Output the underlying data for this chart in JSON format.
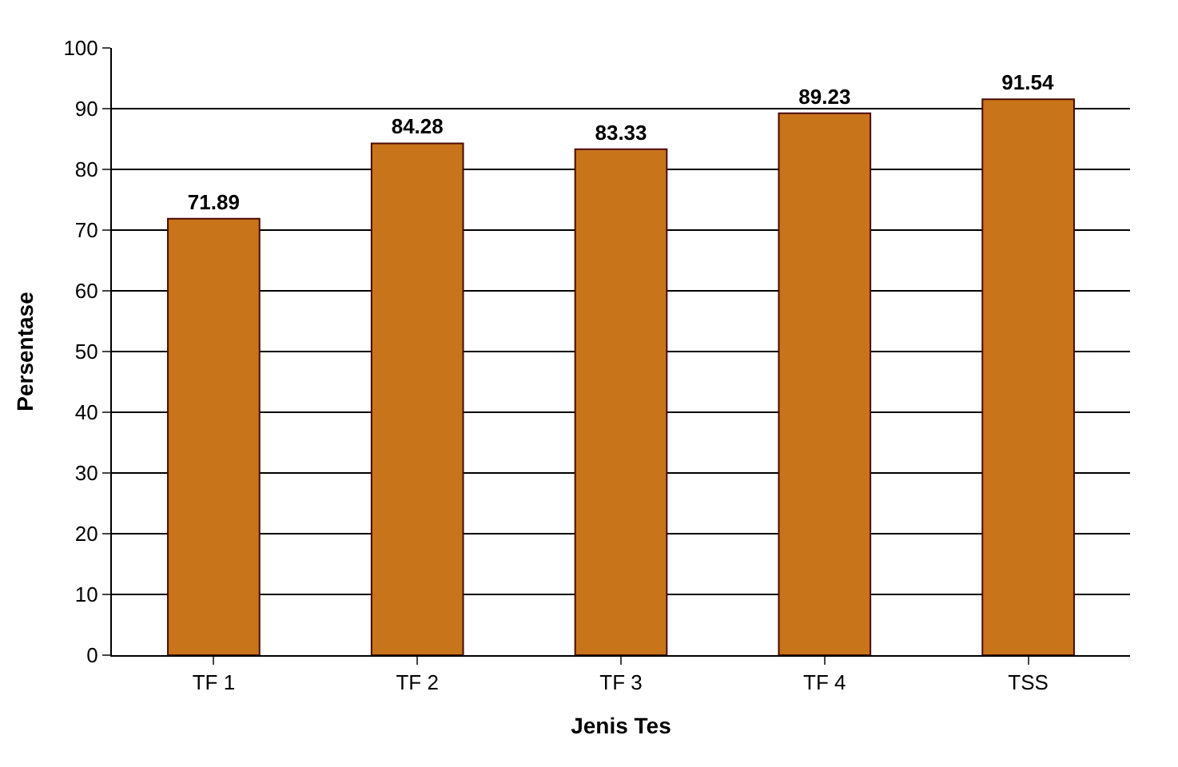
{
  "chart_data": {
    "type": "bar",
    "xlabel": "Jenis Tes",
    "ylabel": "Persentase",
    "categories": [
      "TF 1",
      "TF 2",
      "TF 3",
      "TF 4",
      "TSS"
    ],
    "values": [
      71.89,
      84.28,
      83.33,
      89.23,
      91.54
    ],
    "color": "#c8741a",
    "ylim": [
      0,
      100
    ],
    "yticks": [
      0,
      10,
      20,
      30,
      40,
      50,
      60,
      70,
      80,
      90,
      100
    ],
    "grid": "y",
    "data_labels": true
  }
}
